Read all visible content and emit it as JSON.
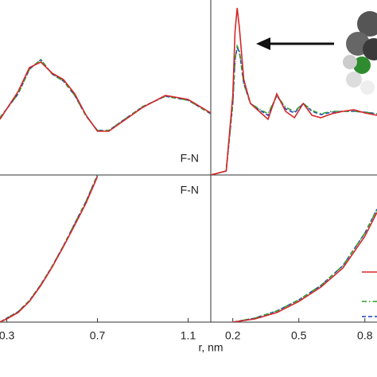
{
  "xlabel": "r, nm",
  "chart_data": [
    {
      "type": "line",
      "annotation": "F-N",
      "x": [
        0.27,
        0.35,
        0.4,
        0.45,
        0.5,
        0.55,
        0.6,
        0.65,
        0.7,
        0.75,
        0.8,
        0.9,
        1.0,
        1.1,
        1.2
      ],
      "xlim": [
        0.27,
        1.2
      ],
      "ylim": [
        0,
        2.2
      ],
      "series": [
        {
          "color": "#d62728",
          "dash": "solid",
          "values": [
            0.7,
            1.05,
            1.35,
            1.42,
            1.28,
            1.2,
            1.02,
            0.75,
            0.55,
            0.55,
            0.65,
            0.85,
            1.0,
            0.95,
            0.78
          ]
        },
        {
          "color": "#2ca02c",
          "dash": "dashdot",
          "values": [
            0.72,
            1.02,
            1.33,
            1.45,
            1.27,
            1.18,
            1.0,
            0.74,
            0.56,
            0.56,
            0.66,
            0.86,
            0.99,
            0.94,
            0.77
          ]
        },
        {
          "color": "#1f3fbf",
          "dash": "dashed",
          "values": [
            0.72,
            1.02,
            1.33,
            1.45,
            1.27,
            1.18,
            1.0,
            0.74,
            0.56,
            0.56,
            0.66,
            0.86,
            0.99,
            0.94,
            0.77
          ]
        }
      ]
    },
    {
      "type": "line",
      "x": [
        0.1,
        0.17,
        0.2,
        0.21,
        0.22,
        0.23,
        0.25,
        0.28,
        0.32,
        0.36,
        0.4,
        0.44,
        0.48,
        0.52,
        0.56,
        0.6,
        0.65,
        0.7,
        0.75,
        0.8,
        0.855
      ],
      "xlim": [
        0.1,
        0.855
      ],
      "ylim": [
        0,
        2.2
      ],
      "series": [
        {
          "color": "#d62728",
          "dash": "solid",
          "values": [
            0,
            0.05,
            1.0,
            1.8,
            2.1,
            1.85,
            1.2,
            0.9,
            0.8,
            0.7,
            1.02,
            0.8,
            0.72,
            0.9,
            0.75,
            0.72,
            0.77,
            0.8,
            0.82,
            0.78,
            0.75
          ]
        },
        {
          "color": "#2ca02c",
          "dash": "dashdot",
          "values": [
            0,
            0.05,
            0.9,
            1.45,
            1.62,
            1.56,
            1.15,
            0.9,
            0.83,
            0.77,
            1.0,
            0.85,
            0.8,
            0.9,
            0.81,
            0.77,
            0.8,
            0.8,
            0.8,
            0.79,
            0.77
          ]
        },
        {
          "color": "#1f3fbf",
          "dash": "dashed",
          "values": [
            0,
            0.05,
            0.9,
            1.45,
            1.6,
            1.55,
            1.15,
            0.9,
            0.82,
            0.75,
            1.0,
            0.83,
            0.78,
            0.9,
            0.8,
            0.76,
            0.79,
            0.8,
            0.8,
            0.79,
            0.77
          ]
        }
      ]
    },
    {
      "type": "line",
      "annotation": "F-N",
      "x": [
        0.27,
        0.3,
        0.35,
        0.4,
        0.45,
        0.5,
        0.55,
        0.6,
        0.65,
        0.7
      ],
      "xlim": [
        0.27,
        1.2
      ],
      "ylim": [
        0,
        1.85
      ],
      "xticks": [
        0.3,
        0.7,
        1.1
      ],
      "series": [
        {
          "color": "#d62728",
          "dash": "solid",
          "values": [
            0,
            0.04,
            0.12,
            0.26,
            0.46,
            0.69,
            0.95,
            1.22,
            1.5,
            1.83
          ]
        },
        {
          "color": "#2ca02c",
          "dash": "dashdot",
          "values": [
            0,
            0.05,
            0.13,
            0.27,
            0.47,
            0.7,
            0.96,
            1.24,
            1.52,
            1.85
          ]
        },
        {
          "color": "#1f3fbf",
          "dash": "dashed",
          "values": [
            0,
            0.05,
            0.13,
            0.27,
            0.47,
            0.7,
            0.96,
            1.24,
            1.52,
            1.85
          ]
        }
      ]
    },
    {
      "type": "line",
      "x": [
        0.2,
        0.3,
        0.4,
        0.5,
        0.6,
        0.7,
        0.8,
        0.855
      ],
      "xlim": [
        0.1,
        0.855
      ],
      "ylim": [
        0,
        1.85
      ],
      "xticks": [
        0.2,
        0.5,
        0.8
      ],
      "series": [
        {
          "color": "#d62728",
          "dash": "solid",
          "values": [
            0,
            0.04,
            0.12,
            0.26,
            0.44,
            0.68,
            1.08,
            1.38
          ]
        },
        {
          "color": "#2ca02c",
          "dash": "dashdot",
          "values": [
            0,
            0.05,
            0.14,
            0.28,
            0.46,
            0.71,
            1.12,
            1.42
          ]
        },
        {
          "color": "#1f3fbf",
          "dash": "dashed",
          "values": [
            0,
            0.05,
            0.14,
            0.28,
            0.46,
            0.71,
            1.12,
            1.42
          ]
        }
      ]
    }
  ]
}
